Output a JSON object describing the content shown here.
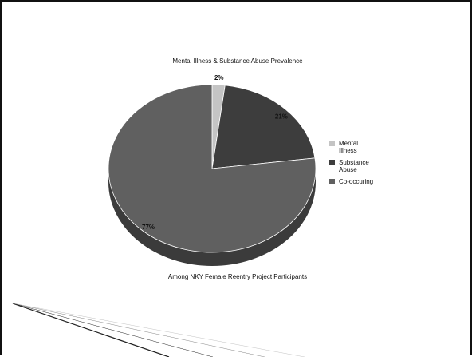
{
  "chart_data": {
    "type": "pie",
    "title": "Mental Illness & Substance Abuse Prevalence",
    "caption": "Among NKY Female Reentry Project Participants",
    "legend_position": "right",
    "slices": [
      {
        "name": "Mental Illness",
        "value": 2,
        "label": "2%",
        "color": "#c4c4c4",
        "side_color": "#9a9a9a"
      },
      {
        "name": "Substance Abuse",
        "value": 21,
        "label": "21%",
        "color": "#3d3d3d",
        "side_color": "#2a2a2a"
      },
      {
        "name": "Co-occuring",
        "value": 77,
        "label": "77%",
        "color": "#606060",
        "side_color": "#3b3b3b"
      }
    ]
  }
}
